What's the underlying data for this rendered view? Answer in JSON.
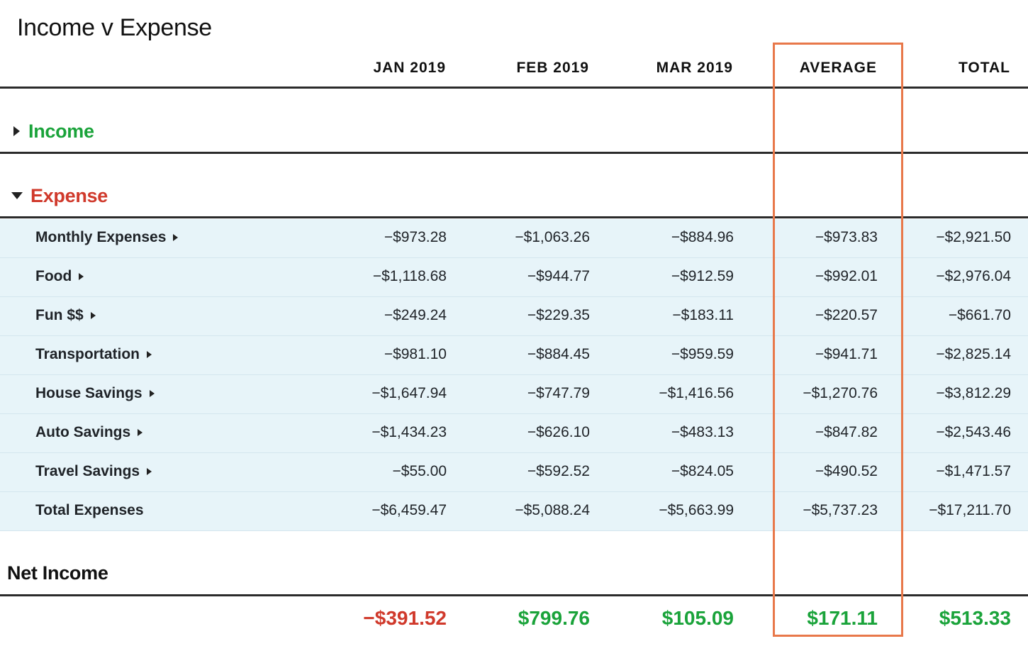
{
  "title": "Income v Expense",
  "columns": [
    "JAN 2019",
    "FEB 2019",
    "MAR 2019",
    "AVERAGE",
    "TOTAL"
  ],
  "sections": {
    "income": {
      "label": "Income",
      "expanded": false
    },
    "expense": {
      "label": "Expense",
      "expanded": true
    }
  },
  "rows": [
    {
      "label": "Monthly Expenses",
      "expandable": true,
      "values": [
        "−$973.28",
        "−$1,063.26",
        "−$884.96",
        "−$973.83",
        "−$2,921.50"
      ]
    },
    {
      "label": "Food",
      "expandable": true,
      "values": [
        "−$1,118.68",
        "−$944.77",
        "−$912.59",
        "−$992.01",
        "−$2,976.04"
      ]
    },
    {
      "label": "Fun $$",
      "expandable": true,
      "values": [
        "−$249.24",
        "−$229.35",
        "−$183.11",
        "−$220.57",
        "−$661.70"
      ]
    },
    {
      "label": "Transportation",
      "expandable": true,
      "values": [
        "−$981.10",
        "−$884.45",
        "−$959.59",
        "−$941.71",
        "−$2,825.14"
      ]
    },
    {
      "label": "House Savings",
      "expandable": true,
      "values": [
        "−$1,647.94",
        "−$747.79",
        "−$1,416.56",
        "−$1,270.76",
        "−$3,812.29"
      ]
    },
    {
      "label": "Auto Savings",
      "expandable": true,
      "values": [
        "−$1,434.23",
        "−$626.10",
        "−$483.13",
        "−$847.82",
        "−$2,543.46"
      ]
    },
    {
      "label": "Travel Savings",
      "expandable": true,
      "values": [
        "−$55.00",
        "−$592.52",
        "−$824.05",
        "−$490.52",
        "−$1,471.57"
      ]
    },
    {
      "label": "Total Expenses",
      "expandable": false,
      "values": [
        "−$6,459.47",
        "−$5,088.24",
        "−$5,663.99",
        "−$5,737.23",
        "−$17,211.70"
      ]
    }
  ],
  "net_income": {
    "label": "Net Income",
    "values": [
      "−$391.52",
      "$799.76",
      "$105.09",
      "$171.11",
      "$513.33"
    ],
    "signs": [
      "negative",
      "positive",
      "positive",
      "positive",
      "positive"
    ]
  },
  "colors": {
    "positive": "#1aa33a",
    "negative": "#d0392b",
    "highlight_border": "#e8784a",
    "row_background": "#e7f4f9"
  },
  "icons": {
    "collapsed": "caret-right-icon",
    "expanded": "caret-down-icon"
  },
  "highlighted_column": "AVERAGE"
}
